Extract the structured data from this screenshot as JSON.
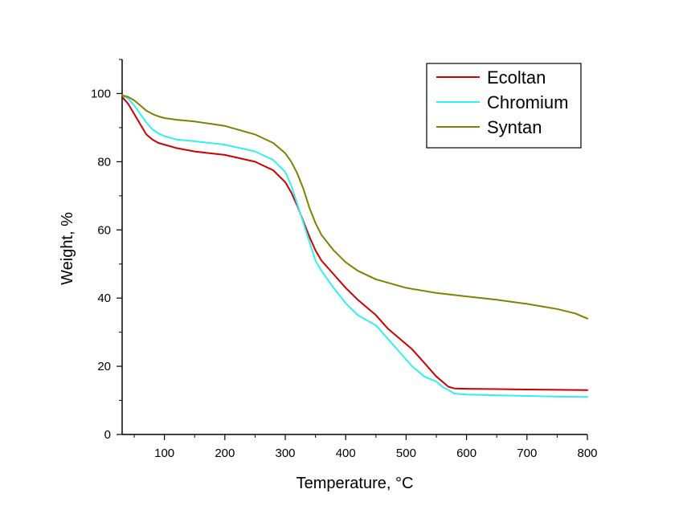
{
  "chart_data": {
    "type": "line",
    "title": "",
    "xlabel": "Temperature, °C",
    "ylabel": "Weight, %",
    "xlim": [
      30,
      800
    ],
    "ylim": [
      0,
      110
    ],
    "xticks": [
      100,
      200,
      300,
      400,
      500,
      600,
      700,
      800
    ],
    "yticks": [
      0,
      20,
      40,
      60,
      80,
      100
    ],
    "xtick_labels": [
      "100",
      "200",
      "300",
      "400",
      "500",
      "600",
      "700",
      "800"
    ],
    "ytick_labels": [
      "0",
      "20",
      "40",
      "60",
      "80",
      "100"
    ],
    "grid": false,
    "legend_position": "top-right",
    "series": [
      {
        "name": "Ecoltan",
        "color": "#cc0000",
        "x": [
          30,
          40,
          50,
          60,
          70,
          80,
          90,
          100,
          120,
          150,
          200,
          250,
          280,
          300,
          310,
          320,
          330,
          340,
          350,
          360,
          380,
          400,
          420,
          450,
          470,
          490,
          510,
          530,
          550,
          570,
          580,
          600,
          650,
          700,
          750,
          800
        ],
        "y": [
          99,
          97,
          94,
          91,
          88,
          86.5,
          85.5,
          85,
          84,
          83,
          82,
          80,
          77.5,
          74,
          71,
          67,
          62.5,
          58,
          54,
          51,
          47,
          43,
          39.5,
          35,
          31,
          28,
          25,
          21,
          17,
          14,
          13.5,
          13.4,
          13.3,
          13.2,
          13.1,
          13
        ]
      },
      {
        "name": "Chromium",
        "color": "#33eeee",
        "x": [
          30,
          40,
          50,
          60,
          70,
          80,
          90,
          100,
          120,
          150,
          200,
          250,
          280,
          300,
          310,
          320,
          330,
          340,
          350,
          360,
          380,
          400,
          420,
          450,
          470,
          490,
          510,
          530,
          550,
          560,
          570,
          580,
          600,
          650,
          700,
          750,
          800
        ],
        "y": [
          99.5,
          98.5,
          96.5,
          94,
          91.5,
          89.5,
          88.3,
          87.5,
          86.5,
          86,
          85,
          83,
          80.5,
          77,
          73,
          67.5,
          62,
          56.5,
          51,
          48,
          43,
          38.5,
          35,
          32,
          28,
          24,
          20,
          17,
          15.5,
          14,
          13,
          12,
          11.7,
          11.5,
          11.3,
          11.1,
          11
        ]
      },
      {
        "name": "Syntan",
        "color": "#808000",
        "x": [
          30,
          40,
          50,
          60,
          70,
          80,
          90,
          100,
          120,
          150,
          200,
          250,
          280,
          300,
          310,
          320,
          330,
          340,
          350,
          360,
          380,
          400,
          420,
          450,
          500,
          550,
          600,
          650,
          700,
          750,
          780,
          800
        ],
        "y": [
          99.5,
          99,
          98,
          96.5,
          95,
          94,
          93.3,
          92.8,
          92.3,
          91.8,
          90.5,
          88,
          85.5,
          82.5,
          80,
          76.5,
          72,
          66.5,
          62,
          58.5,
          54,
          50.5,
          48,
          45.5,
          43,
          41.5,
          40.5,
          39.5,
          38.3,
          36.8,
          35.5,
          34
        ]
      }
    ]
  }
}
